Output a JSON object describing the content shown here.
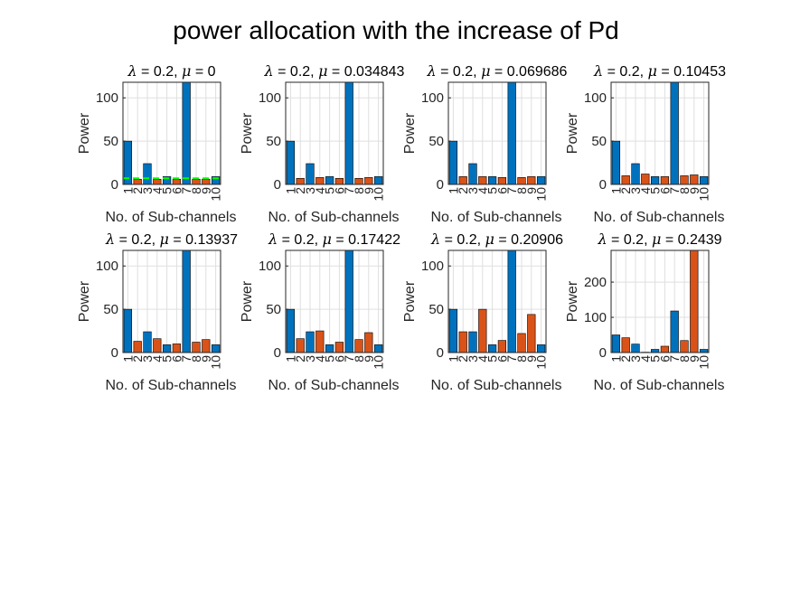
{
  "figure": {
    "title": "power allocation with the increase of Pd"
  },
  "colors": {
    "blue": "#0072BD",
    "orange": "#D95319",
    "green_line": "#00FF00",
    "axis": "#262626",
    "grid": "#dfdfdf"
  },
  "chart_data": [
    {
      "type": "bar",
      "title_lambda": "0.2",
      "title_mu": "0",
      "xlabel": "No. of Sub-channels",
      "ylabel": "Power",
      "categories": [
        "1",
        "2",
        "3",
        "4",
        "5",
        "6",
        "7",
        "8",
        "9",
        "10"
      ],
      "values": [
        50,
        6,
        24,
        6,
        9,
        6,
        118,
        6,
        6,
        9
      ],
      "bar_colors": [
        "blue",
        "orange",
        "blue",
        "orange",
        "blue",
        "orange",
        "blue",
        "orange",
        "orange",
        "blue"
      ],
      "ylim": [
        0,
        118
      ],
      "yticks": [
        0,
        50,
        100
      ],
      "hline": 7,
      "grid": true
    },
    {
      "type": "bar",
      "title_lambda": "0.2",
      "title_mu": "0.034843",
      "xlabel": "No. of Sub-channels",
      "ylabel": "Power",
      "categories": [
        "1",
        "2",
        "3",
        "4",
        "5",
        "6",
        "7",
        "8",
        "9",
        "10"
      ],
      "values": [
        50,
        7,
        24,
        8,
        9,
        7,
        118,
        7,
        8,
        9
      ],
      "bar_colors": [
        "blue",
        "orange",
        "blue",
        "orange",
        "blue",
        "orange",
        "blue",
        "orange",
        "orange",
        "blue"
      ],
      "ylim": [
        0,
        118
      ],
      "yticks": [
        0,
        50,
        100
      ],
      "grid": true
    },
    {
      "type": "bar",
      "title_lambda": "0.2",
      "title_mu": "0.069686",
      "xlabel": "No. of Sub-channels",
      "ylabel": "Power",
      "categories": [
        "1",
        "2",
        "3",
        "4",
        "5",
        "6",
        "7",
        "8",
        "9",
        "10"
      ],
      "values": [
        50,
        9,
        24,
        9,
        9,
        8,
        118,
        8,
        9,
        9
      ],
      "bar_colors": [
        "blue",
        "orange",
        "blue",
        "orange",
        "blue",
        "orange",
        "blue",
        "orange",
        "orange",
        "blue"
      ],
      "ylim": [
        0,
        118
      ],
      "yticks": [
        0,
        50,
        100
      ],
      "grid": true
    },
    {
      "type": "bar",
      "title_lambda": "0.2",
      "title_mu": "0.10453",
      "xlabel": "No. of Sub-channels",
      "ylabel": "Power",
      "categories": [
        "1",
        "2",
        "3",
        "4",
        "5",
        "6",
        "7",
        "8",
        "9",
        "10"
      ],
      "values": [
        50,
        10,
        24,
        12,
        9,
        9,
        118,
        10,
        11,
        9
      ],
      "bar_colors": [
        "blue",
        "orange",
        "blue",
        "orange",
        "blue",
        "orange",
        "blue",
        "orange",
        "orange",
        "blue"
      ],
      "ylim": [
        0,
        118
      ],
      "yticks": [
        0,
        50,
        100
      ],
      "grid": true
    },
    {
      "type": "bar",
      "title_lambda": "0.2",
      "title_mu": "0.13937",
      "xlabel": "No. of Sub-channels",
      "ylabel": "Power",
      "categories": [
        "1",
        "2",
        "3",
        "4",
        "5",
        "6",
        "7",
        "8",
        "9",
        "10"
      ],
      "values": [
        50,
        13,
        24,
        16,
        9,
        10,
        118,
        12,
        15,
        9
      ],
      "bar_colors": [
        "blue",
        "orange",
        "blue",
        "orange",
        "blue",
        "orange",
        "blue",
        "orange",
        "orange",
        "blue"
      ],
      "ylim": [
        0,
        118
      ],
      "yticks": [
        0,
        50,
        100
      ],
      "grid": true
    },
    {
      "type": "bar",
      "title_lambda": "0.2",
      "title_mu": "0.17422",
      "xlabel": "No. of Sub-channels",
      "ylabel": "Power",
      "categories": [
        "1",
        "2",
        "3",
        "4",
        "5",
        "6",
        "7",
        "8",
        "9",
        "10"
      ],
      "values": [
        50,
        16,
        24,
        25,
        9,
        12,
        118,
        15,
        23,
        9
      ],
      "bar_colors": [
        "blue",
        "orange",
        "blue",
        "orange",
        "blue",
        "orange",
        "blue",
        "orange",
        "orange",
        "blue"
      ],
      "ylim": [
        0,
        118
      ],
      "yticks": [
        0,
        50,
        100
      ],
      "grid": true
    },
    {
      "type": "bar",
      "title_lambda": "0.2",
      "title_mu": "0.20906",
      "xlabel": "No. of Sub-channels",
      "ylabel": "Power",
      "categories": [
        "1",
        "2",
        "3",
        "4",
        "5",
        "6",
        "7",
        "8",
        "9",
        "10"
      ],
      "values": [
        50,
        24,
        24,
        50,
        9,
        14,
        118,
        22,
        44,
        9
      ],
      "bar_colors": [
        "blue",
        "orange",
        "blue",
        "orange",
        "blue",
        "orange",
        "blue",
        "orange",
        "orange",
        "blue"
      ],
      "ylim": [
        0,
        118
      ],
      "yticks": [
        0,
        50,
        100
      ],
      "grid": true
    },
    {
      "type": "bar",
      "title_lambda": "0.2",
      "title_mu": "0.2439",
      "xlabel": "No. of Sub-channels",
      "ylabel": "Power",
      "categories": [
        "1",
        "2",
        "3",
        "4",
        "5",
        "6",
        "7",
        "8",
        "9",
        "10"
      ],
      "values": [
        50,
        42,
        24,
        1,
        9,
        18,
        118,
        34,
        290,
        9
      ],
      "bar_colors": [
        "blue",
        "orange",
        "blue",
        "orange",
        "blue",
        "orange",
        "blue",
        "orange",
        "orange",
        "blue"
      ],
      "ylim": [
        0,
        290
      ],
      "yticks": [
        0,
        100,
        200
      ],
      "grid": true
    }
  ]
}
